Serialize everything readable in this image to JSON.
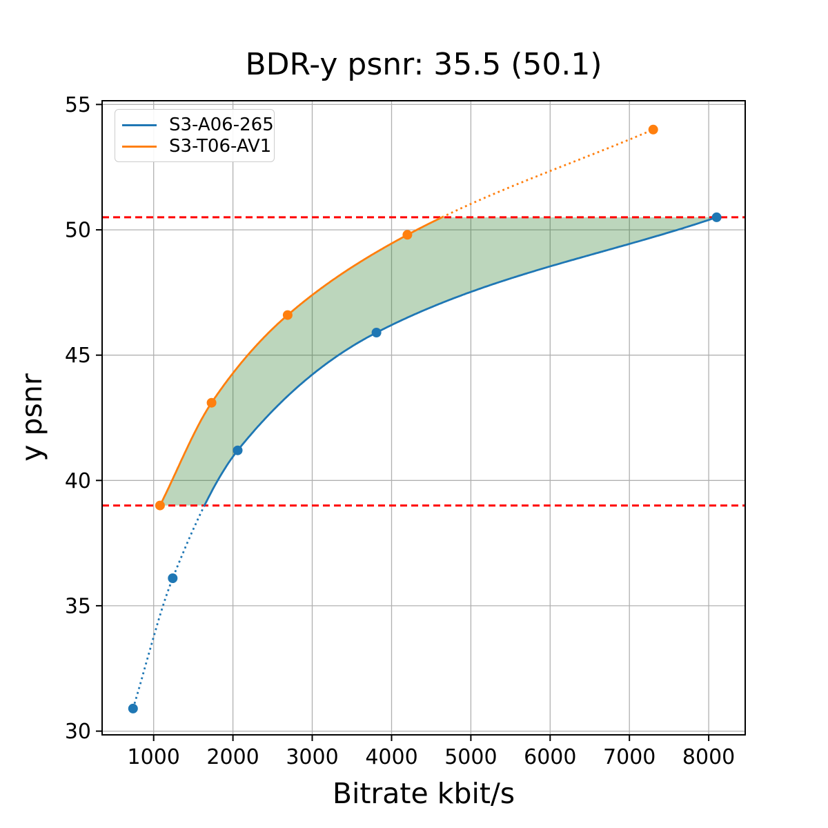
{
  "chart_data": {
    "type": "line",
    "title": "BDR-y psnr: 35.5 (50.1)",
    "xlabel": "Bitrate kbit/s",
    "ylabel": "y psnr",
    "xlim": [
      350,
      8460
    ],
    "ylim": [
      29.85,
      55.15
    ],
    "x_ticks": [
      1000,
      2000,
      3000,
      4000,
      5000,
      6000,
      7000,
      8000
    ],
    "y_ticks": [
      30,
      35,
      40,
      45,
      50,
      55
    ],
    "grid": true,
    "grid_color": "#b0b0b0",
    "legend_position": "upper left",
    "series": [
      {
        "name": "S3-A06-265",
        "color": "#1f77b4",
        "marker": "circle",
        "x": [
          740,
          1240,
          2060,
          3810,
          8100
        ],
        "y": [
          30.9,
          36.1,
          41.2,
          45.9,
          50.5
        ],
        "solid_range_y": [
          39.0,
          50.5
        ],
        "outside_style": "dotted"
      },
      {
        "name": "S3-T06-AV1",
        "color": "#ff7f0e",
        "marker": "circle",
        "x": [
          1080,
          1730,
          2690,
          4200,
          7300
        ],
        "y": [
          39.0,
          43.1,
          46.6,
          49.8,
          54.0
        ],
        "solid_range_y": [
          39.0,
          50.5
        ],
        "outside_style": "dotted"
      }
    ],
    "hlines": [
      {
        "y": 39.0,
        "color": "#ff0000",
        "style": "dashed"
      },
      {
        "y": 50.5,
        "color": "#ff0000",
        "style": "dashed"
      }
    ],
    "fill_between": {
      "ymin": 39.0,
      "ymax": 50.5,
      "color": "#227822",
      "alpha": 0.3
    }
  },
  "legend": [
    {
      "label": "S3-A06-265",
      "color": "#1f77b4"
    },
    {
      "label": "S3-T06-AV1",
      "color": "#ff7f0e"
    }
  ]
}
